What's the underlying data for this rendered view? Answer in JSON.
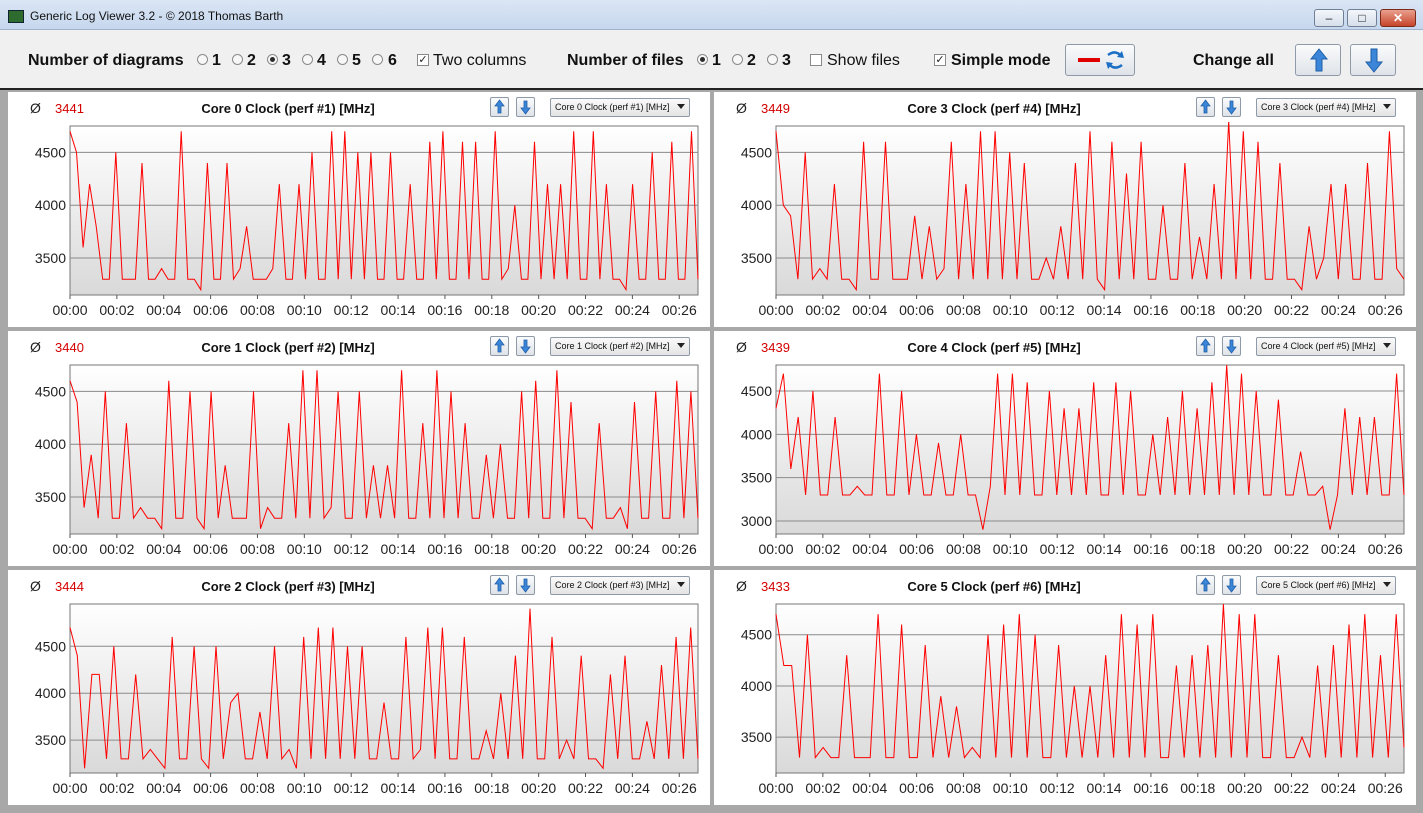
{
  "window": {
    "title": "Generic Log Viewer 3.2 - © 2018 Thomas Barth"
  },
  "toolbar": {
    "diagrams_label": "Number of diagrams",
    "diagram_options": [
      "1",
      "2",
      "3",
      "4",
      "5",
      "6"
    ],
    "diagrams_selected": "3",
    "two_columns_label": "Two columns",
    "two_columns_checked": true,
    "files_label": "Number of files",
    "file_options": [
      "1",
      "2",
      "3"
    ],
    "files_selected": "1",
    "show_files_label": "Show files",
    "show_files_checked": false,
    "simple_mode_label": "Simple mode",
    "simple_mode_checked": true,
    "change_all_label": "Change all"
  },
  "colors": {
    "series": "#ff0000",
    "average": "#d40000"
  },
  "icons": {
    "up": "arrow-up-icon",
    "down": "arrow-down-icon",
    "swap": "refresh-icon"
  },
  "panels": [
    {
      "title": "Core 0 Clock (perf #1) [MHz]",
      "avg": "3441",
      "select": "Core 0 Clock (perf #1) [MHz]"
    },
    {
      "title": "Core 3 Clock (perf #4) [MHz]",
      "avg": "3449",
      "select": "Core 3 Clock (perf #4) [MHz]"
    },
    {
      "title": "Core 1 Clock (perf #2) [MHz]",
      "avg": "3440",
      "select": "Core 1 Clock (perf #2) [MHz]"
    },
    {
      "title": "Core 4 Clock (perf #5) [MHz]",
      "avg": "3439",
      "select": "Core 4 Clock (perf #5) [MHz]"
    },
    {
      "title": "Core 2 Clock (perf #3) [MHz]",
      "avg": "3444",
      "select": "Core 2 Clock (perf #3) [MHz]"
    },
    {
      "title": "Core 5 Clock (perf #6) [MHz]",
      "avg": "3433",
      "select": "Core 5 Clock (perf #6) [MHz]"
    }
  ],
  "chart_data": [
    {
      "type": "line",
      "title": "Core 0 Clock (perf #1) [MHz]",
      "x_start_min": 0,
      "x_end_min": 26.8,
      "ylim": [
        3150,
        4750
      ],
      "yticks": [
        3500,
        4000,
        4500
      ],
      "xticks": [
        "00:00",
        "00:02",
        "00:04",
        "00:06",
        "00:08",
        "00:10",
        "00:12",
        "00:14",
        "00:16",
        "00:18",
        "00:20",
        "00:22",
        "00:24",
        "00:26"
      ],
      "series": [
        {
          "values": [
            4700,
            4500,
            3600,
            4200,
            3800,
            3300,
            3300,
            4500,
            3300,
            3300,
            3300,
            4400,
            3300,
            3300,
            3400,
            3300,
            3300,
            4700,
            3300,
            3300,
            3200,
            4400,
            3300,
            3300,
            4400,
            3300,
            3400,
            3800,
            3300,
            3300,
            3300,
            3400,
            4200,
            3300,
            3300,
            4200,
            3300,
            4500,
            3300,
            3300,
            4700,
            3300,
            4700,
            3300,
            4500,
            3300,
            4500,
            3300,
            3300,
            4500,
            3300,
            3300,
            4200,
            3300,
            3300,
            4600,
            3300,
            4700,
            3300,
            3300,
            4600,
            3300,
            4600,
            3300,
            3300,
            4700,
            3300,
            3400,
            4000,
            3300,
            3300,
            4600,
            3300,
            4200,
            3300,
            4200,
            3300,
            4700,
            3300,
            3300,
            4700,
            3300,
            4200,
            3300,
            3300,
            3200,
            4200,
            3300,
            3300,
            4500,
            3300,
            3300,
            4600,
            3300,
            3300,
            4700,
            3300
          ]
        }
      ]
    },
    {
      "type": "line",
      "title": "Core 3 Clock (perf #4) [MHz]",
      "x_start_min": 0,
      "x_end_min": 26.8,
      "ylim": [
        3150,
        4750
      ],
      "yticks": [
        3500,
        4000,
        4500
      ],
      "xticks": [
        "00:00",
        "00:02",
        "00:04",
        "00:06",
        "00:08",
        "00:10",
        "00:12",
        "00:14",
        "00:16",
        "00:18",
        "00:20",
        "00:22",
        "00:24",
        "00:26"
      ],
      "series": [
        {
          "values": [
            4700,
            4000,
            3900,
            3300,
            4500,
            3300,
            3400,
            3300,
            4200,
            3300,
            3300,
            3200,
            4600,
            3300,
            3300,
            4600,
            3300,
            3300,
            3300,
            3900,
            3300,
            3800,
            3300,
            3400,
            4600,
            3300,
            4200,
            3300,
            4700,
            3300,
            4700,
            3300,
            4500,
            3300,
            4400,
            3300,
            3300,
            3500,
            3300,
            3800,
            3300,
            4400,
            3300,
            4700,
            3300,
            3200,
            4600,
            3300,
            4300,
            3300,
            4600,
            3300,
            3300,
            4000,
            3300,
            3300,
            4400,
            3300,
            3700,
            3300,
            4200,
            3300,
            4800,
            3300,
            4700,
            3300,
            4600,
            3300,
            3300,
            4400,
            3300,
            3300,
            3200,
            3800,
            3300,
            3500,
            4200,
            3300,
            4200,
            3300,
            3300,
            4400,
            3300,
            3300,
            4700,
            3400,
            3300
          ]
        }
      ]
    },
    {
      "type": "line",
      "title": "Core 1 Clock (perf #2) [MHz]",
      "x_start_min": 0,
      "x_end_min": 26.8,
      "ylim": [
        3150,
        4750
      ],
      "yticks": [
        3500,
        4000,
        4500
      ],
      "xticks": [
        "00:00",
        "00:02",
        "00:04",
        "00:06",
        "00:08",
        "00:10",
        "00:12",
        "00:14",
        "00:16",
        "00:18",
        "00:20",
        "00:22",
        "00:24",
        "00:26"
      ],
      "series": [
        {
          "values": [
            4600,
            4400,
            3400,
            3900,
            3300,
            4500,
            3300,
            3300,
            4200,
            3300,
            3400,
            3300,
            3300,
            3200,
            4600,
            3300,
            3300,
            4500,
            3300,
            3200,
            4500,
            3300,
            3800,
            3300,
            3300,
            3300,
            4500,
            3200,
            3400,
            3300,
            3300,
            4200,
            3300,
            4700,
            3300,
            4700,
            3300,
            3400,
            4500,
            3300,
            3300,
            4500,
            3300,
            3800,
            3300,
            3800,
            3300,
            4700,
            3300,
            3300,
            4200,
            3300,
            4700,
            3300,
            4500,
            3300,
            4200,
            3300,
            3300,
            3900,
            3300,
            4000,
            3300,
            3300,
            4500,
            3300,
            4600,
            3300,
            3300,
            4700,
            3300,
            4400,
            3300,
            3300,
            3200,
            4200,
            3300,
            3300,
            3400,
            3200,
            4400,
            3300,
            3300,
            4500,
            3300,
            3300,
            4600,
            3300,
            4500,
            3300
          ]
        }
      ]
    },
    {
      "type": "line",
      "title": "Core 4 Clock (perf #5) [MHz]",
      "x_start_min": 0,
      "x_end_min": 26.8,
      "ylim": [
        2850,
        4800
      ],
      "yticks": [
        3000,
        3500,
        4000,
        4500
      ],
      "xticks": [
        "00:00",
        "00:02",
        "00:04",
        "00:06",
        "00:08",
        "00:10",
        "00:12",
        "00:14",
        "00:16",
        "00:18",
        "00:20",
        "00:22",
        "00:24",
        "00:26"
      ],
      "series": [
        {
          "values": [
            4300,
            4700,
            3600,
            4200,
            3300,
            4500,
            3300,
            3300,
            4200,
            3300,
            3300,
            3400,
            3300,
            3300,
            4700,
            3300,
            3300,
            4500,
            3300,
            4000,
            3300,
            3300,
            3900,
            3300,
            3300,
            4000,
            3300,
            3300,
            2900,
            3400,
            4700,
            3300,
            4700,
            3300,
            4600,
            3300,
            3300,
            4500,
            3300,
            4300,
            3300,
            4300,
            3300,
            4600,
            3300,
            3300,
            4600,
            3300,
            4500,
            3300,
            3300,
            4000,
            3300,
            4200,
            3300,
            4500,
            3300,
            4300,
            3300,
            4600,
            3300,
            4800,
            3300,
            4700,
            3300,
            4500,
            3300,
            3300,
            4400,
            3300,
            3300,
            3800,
            3300,
            3300,
            3400,
            2900,
            3300,
            4300,
            3300,
            4200,
            3300,
            4200,
            3300,
            3300,
            4700,
            3300
          ]
        }
      ]
    },
    {
      "type": "line",
      "title": "Core 2 Clock (perf #3) [MHz]",
      "x_start_min": 0,
      "x_end_min": 26.8,
      "ylim": [
        3150,
        4950
      ],
      "yticks": [
        3500,
        4000,
        4500
      ],
      "xticks": [
        "00:00",
        "00:02",
        "00:04",
        "00:06",
        "00:08",
        "00:10",
        "00:12",
        "00:14",
        "00:16",
        "00:18",
        "00:20",
        "00:22",
        "00:24",
        "00:26"
      ],
      "series": [
        {
          "values": [
            4700,
            4400,
            3200,
            4200,
            4200,
            3300,
            4500,
            3300,
            3300,
            4200,
            3300,
            3400,
            3300,
            3200,
            4600,
            3300,
            3300,
            4500,
            3300,
            3200,
            4500,
            3300,
            3900,
            4000,
            3300,
            3300,
            3800,
            3300,
            4500,
            3300,
            3400,
            3200,
            4600,
            3300,
            4700,
            3300,
            4700,
            3300,
            4500,
            3300,
            4500,
            3300,
            3300,
            3900,
            3300,
            3300,
            4600,
            3300,
            3400,
            4700,
            3300,
            4700,
            3300,
            3300,
            4600,
            3300,
            3300,
            3600,
            3300,
            4000,
            3300,
            4400,
            3300,
            4900,
            3300,
            3300,
            4600,
            3300,
            3500,
            3300,
            4400,
            3300,
            3300,
            3200,
            4200,
            3300,
            4400,
            3300,
            3300,
            3700,
            3300,
            4300,
            3300,
            4600,
            3300,
            4700,
            3300
          ]
        }
      ]
    },
    {
      "type": "line",
      "title": "Core 5 Clock (perf #6) [MHz]",
      "x_start_min": 0,
      "x_end_min": 26.8,
      "ylim": [
        3150,
        4800
      ],
      "yticks": [
        3500,
        4000,
        4500
      ],
      "xticks": [
        "00:00",
        "00:02",
        "00:04",
        "00:06",
        "00:08",
        "00:10",
        "00:12",
        "00:14",
        "00:16",
        "00:18",
        "00:20",
        "00:22",
        "00:24",
        "00:26"
      ],
      "series": [
        {
          "values": [
            4700,
            4200,
            4200,
            3300,
            4500,
            3300,
            3400,
            3300,
            3300,
            4300,
            3300,
            3300,
            3300,
            4700,
            3300,
            3300,
            4600,
            3300,
            3300,
            4400,
            3300,
            3900,
            3300,
            3800,
            3300,
            3400,
            3300,
            4500,
            3300,
            4600,
            3300,
            4700,
            3300,
            4500,
            3300,
            3300,
            4400,
            3300,
            4000,
            3300,
            4000,
            3300,
            4300,
            3300,
            4700,
            3300,
            4600,
            3300,
            4700,
            3300,
            3300,
            4200,
            3300,
            4300,
            3300,
            4400,
            3300,
            4800,
            3300,
            4700,
            3300,
            4700,
            3300,
            3300,
            4300,
            3300,
            3300,
            3500,
            3300,
            4200,
            3300,
            4400,
            3300,
            4600,
            3300,
            4700,
            3300,
            4300,
            3300,
            4700,
            3400
          ]
        }
      ]
    }
  ]
}
